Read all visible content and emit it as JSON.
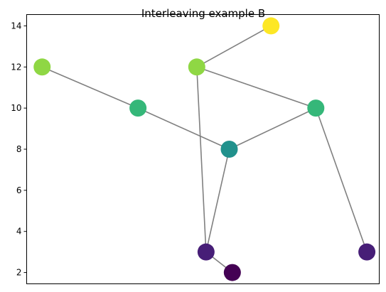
{
  "chart_data": {
    "type": "scatter",
    "title": "Interleaving example B",
    "xlabel": "",
    "ylabel": "",
    "x_ticks_visible": false,
    "xlim": [
      -0.5,
      10.9
    ],
    "ylim": [
      1.45,
      14.55
    ],
    "yticks": [
      2,
      4,
      6,
      8,
      10,
      12,
      14
    ],
    "grid": false,
    "edge_color": "#808080",
    "nodes": [
      {
        "id": "n1",
        "x": 0.0,
        "y": 12,
        "color": "#8fd744"
      },
      {
        "id": "n2",
        "x": 3.1,
        "y": 10,
        "color": "#35b779"
      },
      {
        "id": "n3",
        "x": 6.05,
        "y": 8,
        "color": "#21918c"
      },
      {
        "id": "n4",
        "x": 5.0,
        "y": 12,
        "color": "#8fd744"
      },
      {
        "id": "n5",
        "x": 7.4,
        "y": 14,
        "color": "#fde725"
      },
      {
        "id": "n6",
        "x": 8.85,
        "y": 10,
        "color": "#35b779"
      },
      {
        "id": "n7",
        "x": 5.3,
        "y": 3,
        "color": "#471e77"
      },
      {
        "id": "n8",
        "x": 6.15,
        "y": 2,
        "color": "#440154"
      },
      {
        "id": "n9",
        "x": 10.5,
        "y": 3,
        "color": "#471e77"
      }
    ],
    "edges": [
      [
        "n1",
        "n2"
      ],
      [
        "n2",
        "n3"
      ],
      [
        "n3",
        "n6"
      ],
      [
        "n4",
        "n5"
      ],
      [
        "n4",
        "n6"
      ],
      [
        "n4",
        "n7"
      ],
      [
        "n3",
        "n7"
      ],
      [
        "n7",
        "n8"
      ],
      [
        "n6",
        "n9"
      ]
    ]
  }
}
